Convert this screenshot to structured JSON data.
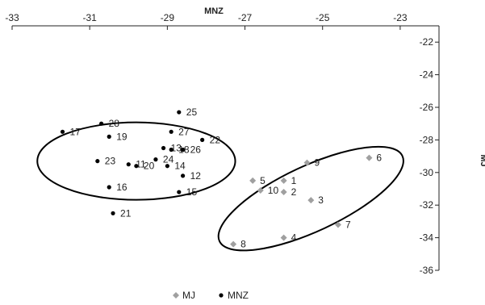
{
  "chart_data": {
    "type": "scatter",
    "title": "",
    "xlabel": "MNZ",
    "ylabel": "MJ",
    "x_axis_position": "top",
    "y_axis_position": "right",
    "xlim": [
      -33,
      -22
    ],
    "ylim": [
      -36,
      -21
    ],
    "xticks": [
      -33,
      -31,
      -29,
      -27,
      -25,
      -23
    ],
    "yticks": [
      -22,
      -24,
      -26,
      -28,
      -30,
      -32,
      -34,
      -36
    ],
    "grid": false,
    "legend_position": "bottom",
    "series": [
      {
        "name": "MJ",
        "color": "#a0a0a0",
        "marker": "diamond",
        "points": [
          {
            "label": "1",
            "x": -26.0,
            "y": -30.5
          },
          {
            "label": "2",
            "x": -26.0,
            "y": -31.2
          },
          {
            "label": "3",
            "x": -25.3,
            "y": -31.7
          },
          {
            "label": "4",
            "x": -26.0,
            "y": -34.0
          },
          {
            "label": "5",
            "x": -26.8,
            "y": -30.5
          },
          {
            "label": "6",
            "x": -23.8,
            "y": -29.1
          },
          {
            "label": "7",
            "x": -24.6,
            "y": -33.2
          },
          {
            "label": "8",
            "x": -27.3,
            "y": -34.4
          },
          {
            "label": "9",
            "x": -25.4,
            "y": -29.4
          },
          {
            "label": "10",
            "x": -26.6,
            "y": -31.1
          }
        ]
      },
      {
        "name": "MNZ",
        "color": "#000000",
        "marker": "circle",
        "points": [
          {
            "label": "11",
            "x": -30.0,
            "y": -29.5
          },
          {
            "label": "12",
            "x": -28.6,
            "y": -30.2
          },
          {
            "label": "13",
            "x": -29.1,
            "y": -28.5
          },
          {
            "label": "14",
            "x": -29.0,
            "y": -29.6
          },
          {
            "label": "15",
            "x": -28.7,
            "y": -31.2
          },
          {
            "label": "16",
            "x": -30.5,
            "y": -30.9
          },
          {
            "label": "17",
            "x": -31.7,
            "y": -27.5
          },
          {
            "label": "18",
            "x": -28.9,
            "y": -28.6
          },
          {
            "label": "19",
            "x": -30.5,
            "y": -27.8
          },
          {
            "label": "20",
            "x": -29.8,
            "y": -29.6
          },
          {
            "label": "21",
            "x": -30.4,
            "y": -32.5
          },
          {
            "label": "22",
            "x": -28.1,
            "y": -28.0
          },
          {
            "label": "23",
            "x": -30.8,
            "y": -29.3
          },
          {
            "label": "24",
            "x": -29.3,
            "y": -29.2
          },
          {
            "label": "25",
            "x": -28.7,
            "y": -26.3
          },
          {
            "label": "26",
            "x": -28.6,
            "y": -28.6
          },
          {
            "label": "27",
            "x": -28.9,
            "y": -27.5
          },
          {
            "label": "28",
            "x": -30.7,
            "y": -27.0
          }
        ]
      }
    ],
    "annotations": [
      {
        "type": "ellipse",
        "group": "MNZ",
        "cx": -29.8,
        "cy": -29.3,
        "rx": 2.55,
        "ry": 4.75,
        "angle": 0
      },
      {
        "type": "ellipse",
        "group": "MJ",
        "cx": -25.3,
        "cy": -31.6,
        "rx": 2.6,
        "ry": 4.0,
        "angle": -25
      }
    ]
  }
}
